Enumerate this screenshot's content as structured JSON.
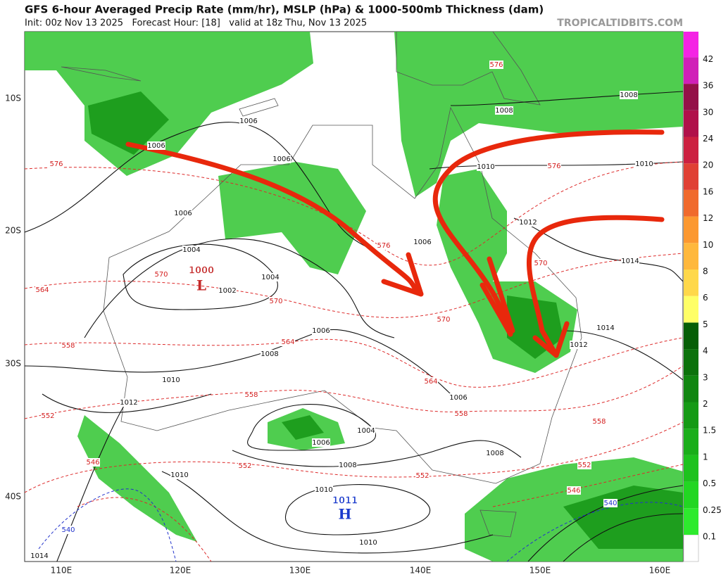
{
  "header": {
    "title": "GFS 6-hour Averaged Precip Rate (mm/hr), MSLP (hPa) & 1000-500mb Thickness (dam)",
    "subtitle": "Init: 00z Nov 13 2025   Forecast Hour: [18]   valid at 18z Thu, Nov 13 2025",
    "site": "TROPICALTIDBITS.COM"
  },
  "map": {
    "lat_labels": [
      "10S",
      "20S",
      "30S",
      "40S"
    ],
    "lon_labels": [
      "110E",
      "120E",
      "130E",
      "140E",
      "150E",
      "160E"
    ],
    "isobar_labels": [
      1006,
      1006,
      1006,
      1006,
      1004,
      1002,
      1004,
      1006,
      1008,
      1010,
      1012,
      1006,
      1006,
      1004,
      1006,
      1008,
      1008,
      1010,
      1010,
      1010,
      1014,
      1010,
      1010,
      1012,
      1014,
      1014,
      1012,
      1008,
      1008
    ],
    "thickness_labels": [
      576,
      576,
      576,
      576,
      570,
      570,
      570,
      570,
      564,
      564,
      564,
      558,
      558,
      558,
      558,
      552,
      552,
      552,
      552,
      546,
      546,
      540,
      540
    ],
    "pressure_centers": [
      {
        "symbol": "L",
        "value": 1000
      },
      {
        "symbol": "H",
        "value": 1011
      }
    ]
  },
  "colorbar": {
    "ticks": [
      0.1,
      0.25,
      0.5,
      1,
      1.5,
      2,
      3,
      4,
      5,
      6,
      8,
      10,
      12,
      16,
      20,
      24,
      30,
      36,
      42
    ],
    "colors": [
      "#ffffff",
      "#2eea2e",
      "#22d622",
      "#1ec21e",
      "#1aae1a",
      "#159a15",
      "#108610",
      "#0b720b",
      "#065e06",
      "#ffff66",
      "#ffd84a",
      "#ffb83c",
      "#fc9830",
      "#f06a2c",
      "#e04034",
      "#cc2040",
      "#b0104a",
      "#941048",
      "#d020b8",
      "#f424e4"
    ]
  }
}
